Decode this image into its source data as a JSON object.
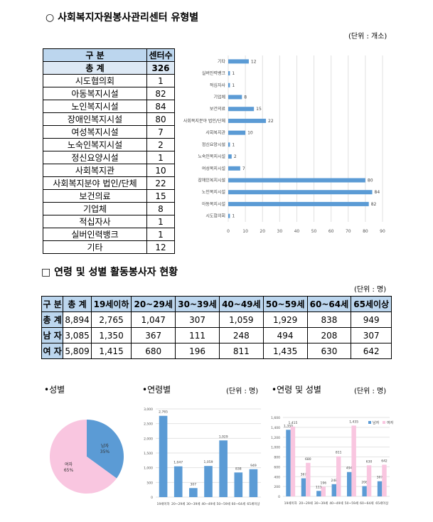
{
  "section1": {
    "title": "○ 사회복지자원봉사관리센터 유형별",
    "unit": "(단위 : 개소)",
    "headers": [
      "구  분",
      "센터수"
    ],
    "rows": [
      [
        "총  계",
        "326"
      ],
      [
        "시도협의회",
        "1"
      ],
      [
        "아동복지시설",
        "82"
      ],
      [
        "노인복지시설",
        "84"
      ],
      [
        "장애인복지시설",
        "80"
      ],
      [
        "여성복지시설",
        "7"
      ],
      [
        "노숙인복지시설",
        "2"
      ],
      [
        "정신요양시설",
        "1"
      ],
      [
        "사회복지관",
        "10"
      ],
      [
        "사회복지분야 법인/단체",
        "22"
      ],
      [
        "보건의료",
        "15"
      ],
      [
        "기업체",
        "8"
      ],
      [
        "적십자사",
        "1"
      ],
      [
        "실버인력뱅크",
        "1"
      ],
      [
        "기타",
        "12"
      ]
    ]
  },
  "chart_data": [
    {
      "type": "bar",
      "orientation": "horizontal",
      "categories": [
        "시도협의회",
        "아동복지시설",
        "노인복지시설",
        "장애인복지시설",
        "여성복지시설",
        "노숙인복지시설",
        "정신요양시설",
        "사회복지관",
        "사회복지분야 법인/단체",
        "보건의료",
        "기업체",
        "적십자사",
        "실버인력뱅크",
        "기타"
      ],
      "values": [
        1,
        82,
        84,
        80,
        7,
        2,
        1,
        10,
        22,
        15,
        8,
        1,
        1,
        12
      ],
      "xlim": [
        0,
        90
      ],
      "ticks": [
        "0",
        "10",
        "20",
        "30",
        "40",
        "50",
        "60",
        "70",
        "80",
        "90"
      ],
      "color": "#5b9bd5"
    },
    {
      "type": "pie",
      "title": "•성별",
      "slices": [
        {
          "name": "남자",
          "label": "남자\n35%",
          "value": 35,
          "color": "#5b9bd5"
        },
        {
          "name": "여자",
          "label": "여자\n65%",
          "value": 65,
          "color": "#f9c6e0"
        }
      ]
    },
    {
      "type": "bar",
      "title": "•연령별",
      "unit": "(단위 : 명)",
      "categories": [
        "19세이하",
        "20~29세",
        "30~39세",
        "40~49세",
        "50~59세",
        "60~64세",
        "65세이상"
      ],
      "values": [
        2765,
        1047,
        307,
        1059,
        1929,
        838,
        949
      ],
      "value_labels": [
        "2,765",
        "1,047",
        "307",
        "1,059",
        "1,929",
        "838",
        "949"
      ],
      "ylim": [
        0,
        3000
      ],
      "ticks": [
        "0",
        "500",
        "1,000",
        "1,500",
        "2,000",
        "2,500",
        "3,000"
      ],
      "color": "#5b9bd5"
    },
    {
      "type": "bar",
      "title": "•연령 및 성별",
      "unit": "(단위 : 명)",
      "categories": [
        "19세이하",
        "20~29세",
        "30~39세",
        "40~49세",
        "50~59세",
        "60~64세",
        "65세이상"
      ],
      "series": [
        {
          "name": "남자",
          "values": [
            1350,
            367,
            111,
            248,
            494,
            208,
            307
          ],
          "labels": [
            "1,350",
            "367",
            "111",
            "248",
            "494",
            "208",
            "307"
          ],
          "color": "#5b9bd5"
        },
        {
          "name": "여자",
          "values": [
            1415,
            680,
            196,
            811,
            1435,
            630,
            642
          ],
          "labels": [
            "1,415",
            "680",
            "196",
            "811",
            "1,435",
            "630",
            "642"
          ],
          "color": "#f9c6e0"
        }
      ],
      "ylim": [
        0,
        1600
      ],
      "ticks": [
        "0",
        "200",
        "400",
        "600",
        "800",
        "1,000",
        "1,200",
        "1,400",
        "1,600"
      ]
    }
  ],
  "section2": {
    "title": "□ 연령 및 성별 활동봉사자 현황",
    "unit": "(단위 : 명)",
    "headers": [
      "구 분",
      "총 계",
      "19세이하",
      "20~29세",
      "30~39세",
      "40~49세",
      "50~59세",
      "60~64세",
      "65세이상"
    ],
    "rows": [
      [
        "총 계",
        "8,894",
        "2,765",
        "1,047",
        "307",
        "1,059",
        "1,929",
        "838",
        "949"
      ],
      [
        "남 자",
        "3,085",
        "1,350",
        "367",
        "111",
        "248",
        "494",
        "208",
        "307"
      ],
      [
        "여 자",
        "5,809",
        "1,415",
        "680",
        "196",
        "811",
        "1,435",
        "630",
        "642"
      ]
    ]
  }
}
